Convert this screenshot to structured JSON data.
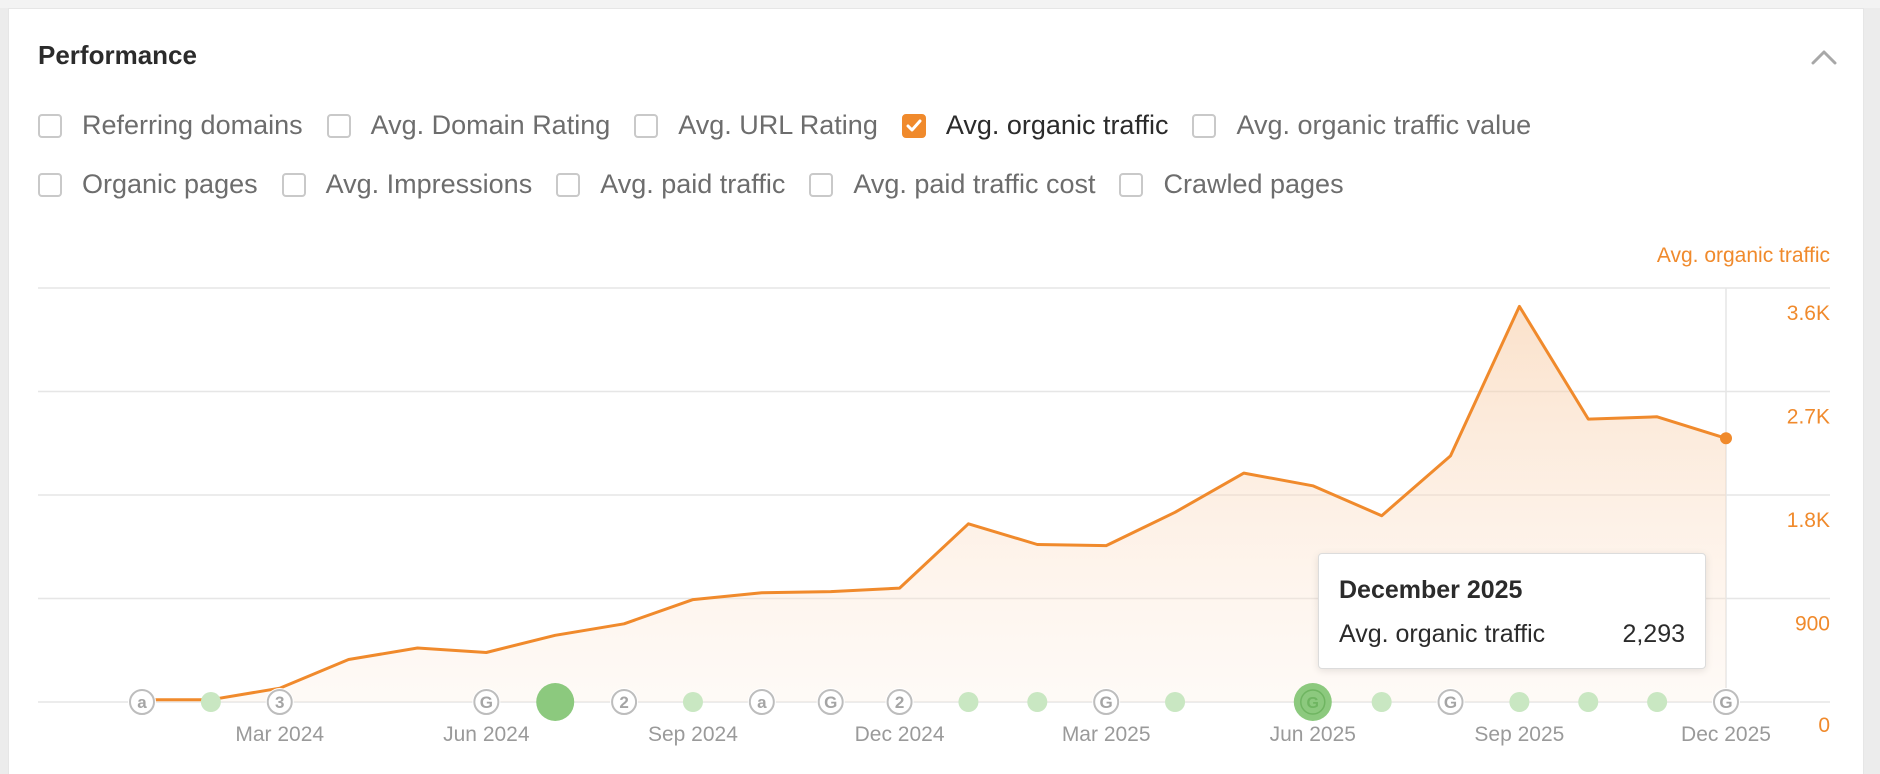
{
  "panel": {
    "title": "Performance"
  },
  "options": [
    [
      {
        "label": "Referring domains",
        "checked": false
      },
      {
        "label": "Avg. Domain Rating",
        "checked": false
      },
      {
        "label": "Avg. URL Rating",
        "checked": false
      },
      {
        "label": "Avg. organic traffic",
        "checked": true
      },
      {
        "label": "Avg. organic traffic value",
        "checked": false
      }
    ],
    [
      {
        "label": "Organic pages",
        "checked": false
      },
      {
        "label": "Avg. Impressions",
        "checked": false
      },
      {
        "label": "Avg. paid traffic",
        "checked": false
      },
      {
        "label": "Avg. paid traffic cost",
        "checked": false
      },
      {
        "label": "Crawled pages",
        "checked": false
      }
    ]
  ],
  "colors": {
    "accent": "#f08a2c",
    "event_green": "#8cc97e",
    "grid": "#e6e6e6"
  },
  "chart_data": {
    "type": "area",
    "series": [
      {
        "name": "Avg. organic traffic",
        "x": [
          "Jan 2024",
          "Feb 2024",
          "Mar 2024",
          "Apr 2024",
          "May 2024",
          "Jun 2024",
          "Jul 2024",
          "Aug 2024",
          "Sep 2024",
          "Oct 2024",
          "Nov 2024",
          "Dec 2024",
          "Jan 2025",
          "Feb 2025",
          "Mar 2025",
          "Apr 2025",
          "May 2025",
          "Jun 2025",
          "Jul 2025",
          "Aug 2025",
          "Sep 2025",
          "Oct 2025",
          "Nov 2025",
          "Dec 2025"
        ],
        "values": [
          20,
          20,
          120,
          370,
          470,
          430,
          580,
          680,
          890,
          950,
          960,
          990,
          1550,
          1370,
          1360,
          1650,
          1990,
          1880,
          1620,
          2140,
          3440,
          2460,
          2480,
          2293
        ]
      }
    ],
    "xtick_labels": [
      "Mar 2024",
      "Jun 2024",
      "Sep 2024",
      "Dec 2024",
      "Mar 2025",
      "Jun 2025",
      "Sep 2025",
      "Dec 2025"
    ],
    "xtick_index": [
      2,
      5,
      8,
      11,
      14,
      17,
      20,
      23
    ],
    "ylabel": "Avg. organic traffic",
    "ytick_labels": [
      "0",
      "900",
      "1.8K",
      "2.7K",
      "3.6K"
    ],
    "ytick_values": [
      0,
      900,
      1800,
      2700,
      3600
    ],
    "ylim": [
      0,
      3600
    ],
    "grid": true,
    "events": [
      {
        "index": 0,
        "kind": "icon",
        "glyph": "a"
      },
      {
        "index": 1,
        "kind": "dot",
        "glyph": ""
      },
      {
        "index": 2,
        "kind": "icon",
        "glyph": "3"
      },
      {
        "index": 5,
        "kind": "icon",
        "glyph": "G"
      },
      {
        "index": 6,
        "kind": "bigdot",
        "glyph": ""
      },
      {
        "index": 7,
        "kind": "icon",
        "glyph": "2"
      },
      {
        "index": 8,
        "kind": "dot",
        "glyph": ""
      },
      {
        "index": 9,
        "kind": "icon",
        "glyph": "a"
      },
      {
        "index": 10,
        "kind": "icon",
        "glyph": "G"
      },
      {
        "index": 11,
        "kind": "icon",
        "glyph": "2"
      },
      {
        "index": 12,
        "kind": "dot",
        "glyph": ""
      },
      {
        "index": 13,
        "kind": "dot",
        "glyph": ""
      },
      {
        "index": 14,
        "kind": "icon",
        "glyph": "G"
      },
      {
        "index": 15,
        "kind": "dot",
        "glyph": ""
      },
      {
        "index": 17,
        "kind": "bigdot",
        "glyph": "G"
      },
      {
        "index": 18,
        "kind": "dot",
        "glyph": ""
      },
      {
        "index": 19,
        "kind": "icon",
        "glyph": "G"
      },
      {
        "index": 20,
        "kind": "dot",
        "glyph": ""
      },
      {
        "index": 21,
        "kind": "dot",
        "glyph": ""
      },
      {
        "index": 22,
        "kind": "dot",
        "glyph": ""
      },
      {
        "index": 23,
        "kind": "icon",
        "glyph": "G"
      }
    ]
  },
  "tooltip": {
    "title": "December 2025",
    "label": "Avg. organic traffic",
    "value": "2,293"
  }
}
